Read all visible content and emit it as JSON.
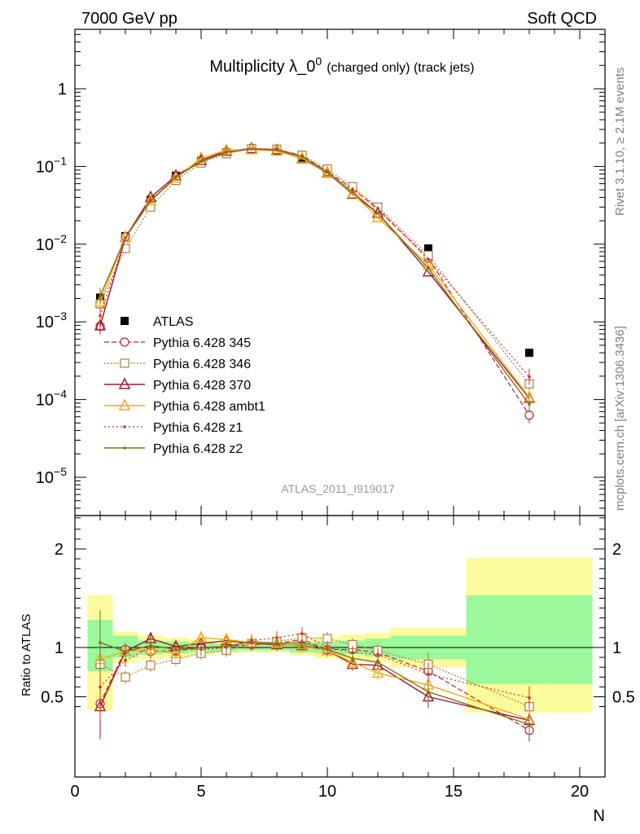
{
  "header": {
    "left": "7000 GeV pp",
    "right": "Soft QCD"
  },
  "side_labels": {
    "rivet": "Rivet 3.1.10, ≥ 2.1M events",
    "mcplots": "mcplots.cern.ch [arXiv:1306.3436]"
  },
  "title": {
    "main": "Multiplicity λ_0",
    "sup": "0",
    "sub": "(charged only) (track jets)"
  },
  "watermark": "ATLAS_2011_I919017",
  "colors": {
    "data": "#000000",
    "p345": "#b2243a",
    "p346": "#b07d3f",
    "p370": "#9b1b2e",
    "ambt1": "#f2aa16",
    "z1": "#d6301f",
    "z2": "#7d7418",
    "band_green": "#9bf89b",
    "band_yellow": "#fbfb9b"
  },
  "chart_data": [
    {
      "type": "line",
      "scale": "log",
      "xlim": [
        0,
        21
      ],
      "ylim": [
        3e-06,
        5
      ],
      "ylabel": "",
      "y_ticks": [
        {
          "value": 1,
          "label": "1"
        },
        {
          "value": 0.1,
          "base": "10",
          "exp": "−1"
        },
        {
          "value": 0.01,
          "base": "10",
          "exp": "−2"
        },
        {
          "value": 0.001,
          "base": "10",
          "exp": "−3"
        },
        {
          "value": 0.0001,
          "base": "10",
          "exp": "−4"
        },
        {
          "value": 1e-05,
          "base": "10",
          "exp": "−5"
        }
      ],
      "x": [
        1,
        2,
        3,
        4,
        5,
        6,
        7,
        8,
        9,
        10,
        11,
        12,
        14,
        18
      ],
      "series": [
        {
          "name": "ATLAS",
          "style": "data",
          "values": [
            0.00205,
            0.0127,
            0.0372,
            0.076,
            0.118,
            0.151,
            0.164,
            0.158,
            0.128,
            0.087,
            0.053,
            0.03,
            0.0088,
            0.0004
          ]
        },
        {
          "name": "Pythia 6.428 345",
          "style": "p345",
          "values": [
            0.00088,
            0.0125,
            0.036,
            0.074,
            0.117,
            0.152,
            0.168,
            0.164,
            0.138,
            0.086,
            0.052,
            0.028,
            0.0066,
            6.3e-05
          ]
        },
        {
          "name": "Pythia 6.428 346",
          "style": "p346",
          "values": [
            0.0017,
            0.0088,
            0.03,
            0.066,
            0.111,
            0.146,
            0.17,
            0.167,
            0.14,
            0.093,
            0.055,
            0.03,
            0.0072,
            0.000159
          ]
        },
        {
          "name": "Pythia 6.428 370",
          "style": "p370",
          "values": [
            0.00089,
            0.0122,
            0.04,
            0.076,
            0.12,
            0.158,
            0.17,
            0.162,
            0.126,
            0.083,
            0.044,
            0.025,
            0.0044,
            0.000104
          ]
        },
        {
          "name": "Pythia 6.428 ambt1",
          "style": "ambt1",
          "values": [
            0.0018,
            0.0122,
            0.036,
            0.071,
            0.128,
            0.162,
            0.165,
            0.158,
            0.128,
            0.084,
            0.045,
            0.022,
            0.0054,
            0.000107
          ]
        },
        {
          "name": "Pythia 6.428 z1",
          "style": "z1",
          "values": [
            0.0012,
            0.012,
            0.037,
            0.073,
            0.116,
            0.152,
            0.168,
            0.168,
            0.136,
            0.087,
            0.051,
            0.029,
            0.0064,
            0.000196
          ]
        },
        {
          "name": "Pythia 6.428 z2",
          "style": "z2",
          "values": [
            0.00215,
            0.0121,
            0.036,
            0.073,
            0.116,
            0.152,
            0.168,
            0.162,
            0.134,
            0.084,
            0.047,
            0.025,
            0.0049,
            8.7e-05
          ]
        }
      ]
    },
    {
      "type": "line",
      "xlabel": "N",
      "ylabel": "Ratio to ATLAS",
      "xlim": [
        0,
        21
      ],
      "ylim": [
        0.34,
        2.3
      ],
      "x_ticks": [
        0,
        5,
        10,
        15,
        20
      ],
      "y_ticks": [
        0.5,
        1,
        2
      ],
      "bands": [
        {
          "xlo": 0.5,
          "xhi": 1.5,
          "green": [
            0.76,
            1.28
          ],
          "yellow": [
            0.36,
            1.53
          ]
        },
        {
          "xlo": 1.5,
          "xhi": 2.5,
          "green": [
            0.9,
            1.12
          ],
          "yellow": [
            0.84,
            1.16
          ]
        },
        {
          "xlo": 2.5,
          "xhi": 3.5,
          "green": [
            0.93,
            1.07
          ],
          "yellow": [
            0.88,
            1.12
          ]
        },
        {
          "xlo": 3.5,
          "xhi": 4.5,
          "green": [
            0.94,
            1.06
          ],
          "yellow": [
            0.9,
            1.1
          ]
        },
        {
          "xlo": 4.5,
          "xhi": 5.5,
          "green": [
            0.95,
            1.05
          ],
          "yellow": [
            0.92,
            1.08
          ]
        },
        {
          "xlo": 5.5,
          "xhi": 6.5,
          "green": [
            0.96,
            1.04
          ],
          "yellow": [
            0.94,
            1.06
          ]
        },
        {
          "xlo": 6.5,
          "xhi": 7.5,
          "green": [
            0.97,
            1.03
          ],
          "yellow": [
            0.95,
            1.05
          ]
        },
        {
          "xlo": 7.5,
          "xhi": 8.5,
          "green": [
            0.97,
            1.03
          ],
          "yellow": [
            0.95,
            1.05
          ]
        },
        {
          "xlo": 8.5,
          "xhi": 9.5,
          "green": [
            0.95,
            1.05
          ],
          "yellow": [
            0.92,
            1.08
          ]
        },
        {
          "xlo": 9.5,
          "xhi": 10.5,
          "green": [
            0.94,
            1.06
          ],
          "yellow": [
            0.89,
            1.11
          ]
        },
        {
          "xlo": 10.5,
          "xhi": 11.5,
          "green": [
            0.93,
            1.07
          ],
          "yellow": [
            0.87,
            1.13
          ]
        },
        {
          "xlo": 11.5,
          "xhi": 12.5,
          "green": [
            0.91,
            1.09
          ],
          "yellow": [
            0.85,
            1.15
          ]
        },
        {
          "xlo": 12.5,
          "xhi": 15.5,
          "green": [
            0.88,
            1.12
          ],
          "yellow": [
            0.8,
            1.2
          ]
        },
        {
          "xlo": 15.5,
          "xhi": 20.5,
          "green": [
            0.63,
            1.53
          ],
          "yellow": [
            0.34,
            1.91
          ]
        }
      ],
      "series": [
        {
          "name": "Pythia 6.428 345",
          "style": "p345",
          "values": [
            0.43,
            0.98,
            0.96,
            0.97,
            0.99,
            1.01,
            1.03,
            1.04,
            1.08,
            0.98,
            0.98,
            0.95,
            0.76,
            0.16
          ]
        },
        {
          "name": "Pythia 6.428 346",
          "style": "p346",
          "values": [
            0.83,
            0.7,
            0.82,
            0.88,
            0.94,
            0.97,
            1.04,
            1.06,
            1.1,
            1.09,
            1.03,
            0.97,
            0.83,
            0.4
          ]
        },
        {
          "name": "Pythia 6.428 370",
          "style": "p370",
          "values": [
            0.4,
            0.96,
            1.09,
            1.01,
            1.04,
            1.07,
            1.04,
            1.03,
            1.02,
            0.97,
            0.83,
            0.82,
            0.5,
            0.26
          ]
        },
        {
          "name": "Pythia 6.428 ambt1",
          "style": "ambt1",
          "values": [
            0.88,
            0.96,
            0.98,
            0.94,
            1.1,
            1.08,
            1.05,
            1.04,
            1.01,
            0.97,
            0.85,
            0.74,
            0.62,
            0.27
          ]
        },
        {
          "name": "Pythia 6.428 z1",
          "style": "z1",
          "values": [
            0.6,
            0.87,
            1.0,
            1.0,
            0.98,
            1.0,
            1.07,
            1.1,
            1.14,
            1.0,
            0.95,
            0.93,
            0.73,
            0.49
          ]
        },
        {
          "name": "Pythia 6.428 z2",
          "style": "z2",
          "values": [
            1.05,
            0.96,
            1.02,
            0.98,
            1.0,
            1.01,
            1.06,
            1.04,
            1.05,
            0.98,
            0.89,
            0.85,
            0.55,
            0.22
          ]
        }
      ]
    }
  ]
}
